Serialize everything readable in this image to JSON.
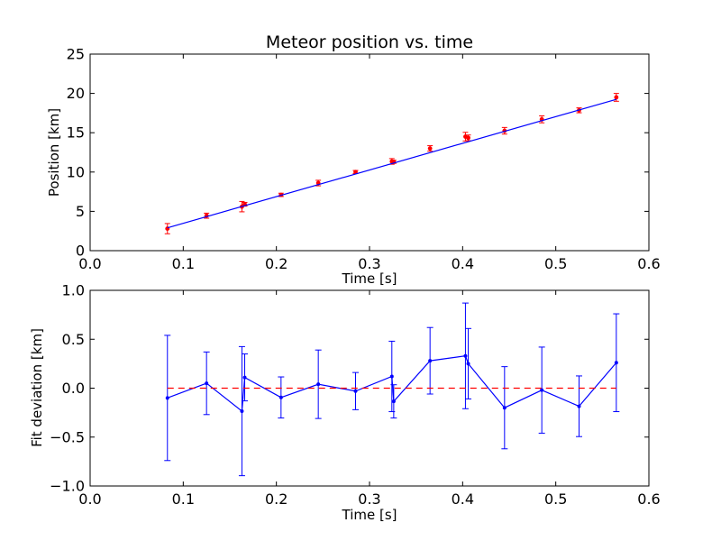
{
  "chart_data": [
    {
      "type": "scatter",
      "title": "Meteor position vs. time",
      "xlabel": "Time [s]",
      "ylabel": "Position [km]",
      "xlim": [
        0.0,
        0.6
      ],
      "ylim": [
        0,
        25
      ],
      "xticks": [
        "0.0",
        "0.1",
        "0.2",
        "0.3",
        "0.4",
        "0.5",
        "0.6"
      ],
      "xtick_values": [
        0.0,
        0.1,
        0.2,
        0.3,
        0.4,
        0.5,
        0.6
      ],
      "yticks": [
        "0",
        "5",
        "10",
        "15",
        "20",
        "25"
      ],
      "ytick_values": [
        0,
        5,
        10,
        15,
        20,
        25
      ],
      "grid": false,
      "series": [
        {
          "kind": "errorbar-points",
          "color": "#ff0000",
          "x": [
            0.083,
            0.125,
            0.163,
            0.166,
            0.205,
            0.245,
            0.285,
            0.324,
            0.326,
            0.365,
            0.403,
            0.406,
            0.445,
            0.485,
            0.525,
            0.565
          ],
          "y": [
            2.8,
            4.45,
            5.6,
            5.9,
            7.1,
            8.6,
            10.0,
            11.35,
            11.3,
            13.0,
            14.5,
            14.35,
            15.25,
            16.7,
            17.85,
            19.5
          ],
          "yerr": [
            0.65,
            0.32,
            0.66,
            0.24,
            0.21,
            0.35,
            0.2,
            0.36,
            0.2,
            0.35,
            0.55,
            0.36,
            0.42,
            0.44,
            0.31,
            0.5
          ]
        },
        {
          "kind": "fit-line",
          "color": "#0000ff",
          "x": [
            0.083,
            0.565
          ],
          "y": [
            2.9,
            19.25
          ]
        }
      ]
    },
    {
      "type": "line",
      "title": "",
      "xlabel": "Time [s]",
      "ylabel": "Fit deviation [km]",
      "xlim": [
        0.0,
        0.6
      ],
      "ylim": [
        -1.0,
        1.0
      ],
      "xticks": [
        "0.0",
        "0.1",
        "0.2",
        "0.3",
        "0.4",
        "0.5",
        "0.6"
      ],
      "xtick_values": [
        0.0,
        0.1,
        0.2,
        0.3,
        0.4,
        0.5,
        0.6
      ],
      "yticks": [
        "−1.0",
        "−0.5",
        "0.0",
        "0.5",
        "1.0"
      ],
      "ytick_values": [
        -1.0,
        -0.5,
        0.0,
        0.5,
        1.0
      ],
      "grid": false,
      "series": [
        {
          "kind": "errorbar-line",
          "color": "#0000ff",
          "x": [
            0.083,
            0.125,
            0.163,
            0.166,
            0.205,
            0.245,
            0.285,
            0.324,
            0.326,
            0.365,
            0.403,
            0.406,
            0.445,
            0.485,
            0.525,
            0.565
          ],
          "y": [
            -0.1,
            0.05,
            -0.235,
            0.11,
            -0.095,
            0.04,
            -0.03,
            0.12,
            -0.135,
            0.28,
            0.33,
            0.25,
            -0.2,
            -0.02,
            -0.185,
            0.26
          ],
          "yerr": [
            0.64,
            0.32,
            0.66,
            0.24,
            0.21,
            0.35,
            0.19,
            0.36,
            0.17,
            0.34,
            0.54,
            0.36,
            0.42,
            0.44,
            0.31,
            0.5
          ]
        },
        {
          "kind": "reference-line",
          "color": "#ff0000",
          "x": [
            0.083,
            0.565
          ],
          "y": [
            0.0,
            0.0
          ]
        }
      ]
    }
  ]
}
